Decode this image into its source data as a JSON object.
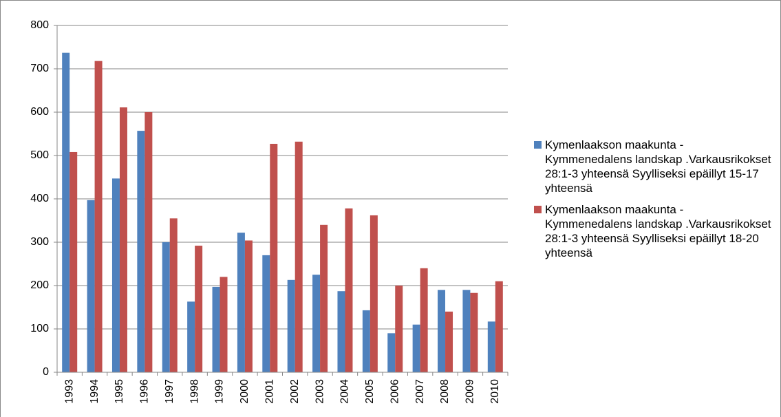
{
  "chart_data": {
    "type": "bar",
    "categories": [
      "1993",
      "1994",
      "1995",
      "1996",
      "1997",
      "1998",
      "1999",
      "2000",
      "2001",
      "2002",
      "2003",
      "2004",
      "2005",
      "2006",
      "2007",
      "2008",
      "2009",
      "2010"
    ],
    "series": [
      {
        "name": "Kymenlaakson maakunta - Kymmenedalens landskap .Varkausrikokset 28:1-3 yhteensä Syylliseksi epäillyt 15-17 yhteensä",
        "color": "#4f81bd",
        "values": [
          737,
          397,
          447,
          557,
          300,
          163,
          197,
          322,
          270,
          213,
          225,
          187,
          143,
          90,
          110,
          190,
          190,
          117
        ]
      },
      {
        "name": "Kymenlaakson maakunta - Kymmenedalens landskap .Varkausrikokset 28:1-3 yhteensä Syylliseksi epäillyt 18-20 yhteensä",
        "color": "#c0504d",
        "values": [
          508,
          718,
          611,
          600,
          355,
          292,
          220,
          304,
          527,
          532,
          340,
          378,
          362,
          200,
          240,
          140,
          183,
          210
        ]
      }
    ],
    "ylim": [
      0,
      800
    ],
    "yticks": [
      0,
      100,
      200,
      300,
      400,
      500,
      600,
      700,
      800
    ],
    "grid": true,
    "legend": "right"
  }
}
